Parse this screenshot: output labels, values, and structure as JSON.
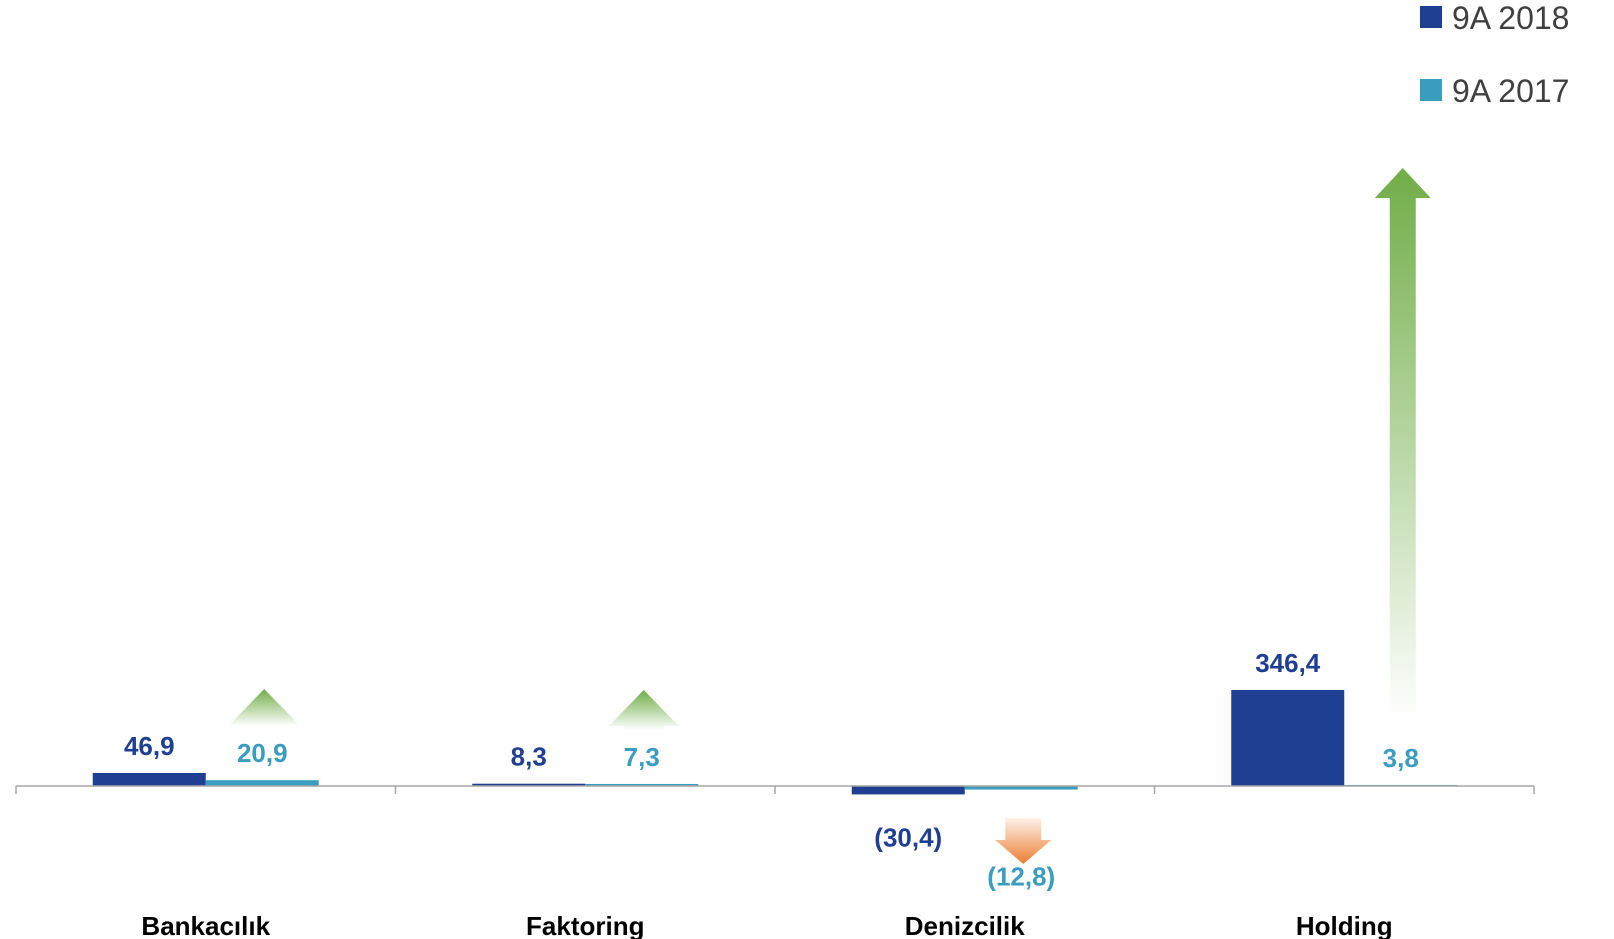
{
  "chart_data": {
    "type": "bar",
    "categories": [
      "Bankacılık",
      "Faktoring",
      "Denizcilik",
      "Holding"
    ],
    "series": [
      {
        "name": "9A 2018",
        "values": [
          46.9,
          8.3,
          -30.4,
          346.4
        ],
        "labels": [
          "46,9",
          "8,3",
          "(30,4)",
          "346,4"
        ]
      },
      {
        "name": "9A 2017",
        "values": [
          20.9,
          7.3,
          -12.8,
          3.8
        ],
        "labels": [
          "20,9",
          "7,3",
          "(12,8)",
          "3,8"
        ]
      }
    ],
    "trend_arrows": [
      "up",
      "up",
      "down",
      "up"
    ],
    "ylim": [
      -60,
      350
    ],
    "legend_position": "top-right",
    "grid": false,
    "colors": {
      "series_2018": "#1F3F93",
      "series_2017": "#3A9DC0",
      "arrow_up": "#70AD47",
      "arrow_down": "#ED7D31",
      "axis": "#A6A6A6",
      "category_text": "#000000"
    }
  }
}
